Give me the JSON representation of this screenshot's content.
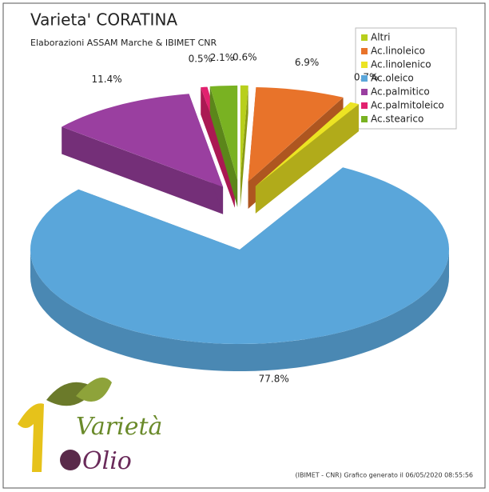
{
  "chart_data": {
    "type": "pie",
    "title": "Varieta' CORATINA",
    "subtitle": "Elaborazioni ASSAM Marche & IBIMET CNR",
    "categories": [
      "Altri",
      "Ac.linoleico",
      "Ac.linolenico",
      "Ac.oleico",
      "Ac.palmitico",
      "Ac.palmitoleico",
      "Ac.stearico"
    ],
    "values": [
      0.6,
      6.9,
      0.7,
      77.8,
      11.4,
      0.5,
      2.1
    ],
    "value_labels": [
      "0.6%",
      "6.9%",
      "0.7%",
      "77.8%",
      "11.4%",
      "0.5%",
      "2.1%"
    ],
    "colors": [
      "#b8cf1c",
      "#e8732a",
      "#ece423",
      "#5aa6da",
      "#9a3fa0",
      "#e2216f",
      "#79b222"
    ],
    "legend": "top-right"
  },
  "footnote": "(IBIMET - CNR) Grafico generato il 06/05/2020 08:55:56",
  "logo": {
    "line1": "Varietà",
    "line2": "Olio"
  }
}
